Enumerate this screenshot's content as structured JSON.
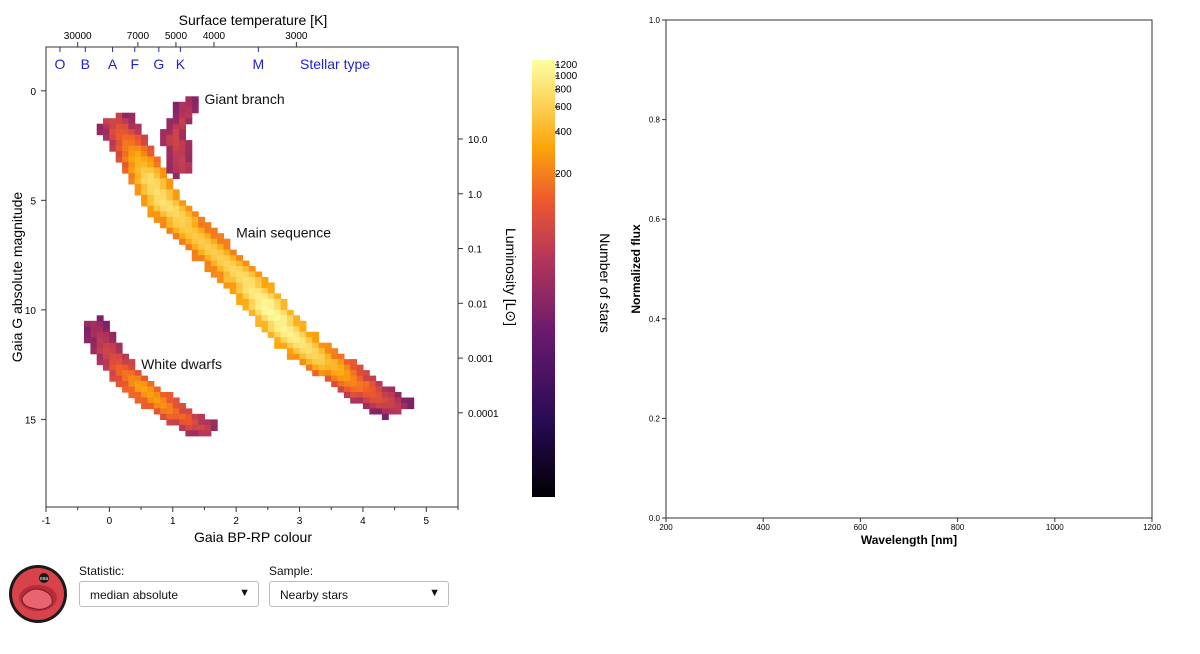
{
  "colors": {
    "stellar_type": "#2222cc",
    "heatmap_low": "#1a0b40",
    "heatmap_mid": "#c73e4c",
    "heatmap_high": "#fcffa4"
  },
  "controls": {
    "statistic_label": "Statistic:",
    "statistic_value": "median absolute",
    "sample_label": "Sample:",
    "sample_value": "Nearby stars",
    "dropdown_icon": "triangle-down-icon"
  },
  "logo": {
    "icon": "esa-mission-badge-icon",
    "text": "esa"
  },
  "chart_data": [
    {
      "type": "heatmap",
      "title": "",
      "xlabel": "Gaia BP-RP colour",
      "ylabel": "Gaia G absolute magnitude",
      "xlim": [
        -1,
        5.5
      ],
      "ylim": [
        19,
        -2
      ],
      "x_ticks": [
        "-1",
        "0",
        "1",
        "2",
        "3",
        "4",
        "5"
      ],
      "y_ticks": [
        "0",
        "5",
        "10",
        "15"
      ],
      "top_axis": {
        "label": "Surface temperature [K]",
        "ticks": [
          {
            "label": "30000",
            "x": -0.5
          },
          {
            "label": "7000",
            "x": 0.45
          },
          {
            "label": "5000",
            "x": 1.05
          },
          {
            "label": "4000",
            "x": 1.65
          },
          {
            "label": "3000",
            "x": 2.95
          }
        ]
      },
      "stellar_types": {
        "label": "Stellar type",
        "types": [
          {
            "label": "O",
            "x": -0.78
          },
          {
            "label": "B",
            "x": -0.38
          },
          {
            "label": "A",
            "x": 0.05
          },
          {
            "label": "F",
            "x": 0.4
          },
          {
            "label": "G",
            "x": 0.78
          },
          {
            "label": "K",
            "x": 1.12
          },
          {
            "label": "M",
            "x": 2.35
          }
        ]
      },
      "luminosity_axis": {
        "label": "Luminosity [L⊙]",
        "ticks": [
          {
            "label": "10.0",
            "mag": 2.2
          },
          {
            "label": "1.0",
            "mag": 4.7
          },
          {
            "label": "0.1",
            "mag": 7.2
          },
          {
            "label": "0.01",
            "mag": 9.7
          },
          {
            "label": "0.001",
            "mag": 12.2
          },
          {
            "label": "0.0001",
            "mag": 14.7
          }
        ]
      },
      "colorbar": {
        "label": "Number of stars",
        "scale": "log",
        "range": [
          1,
          1300
        ],
        "ticks": [
          "1200",
          "1000",
          "800",
          "600",
          "400",
          "200"
        ]
      },
      "regions": [
        {
          "name": "Main sequence",
          "label_at": [
            2.0,
            6.7
          ],
          "points": [
            [
              0.0,
              1.2,
              10
            ],
            [
              0.3,
              2.5,
              80
            ],
            [
              0.55,
              3.8,
              500
            ],
            [
              0.8,
              5.0,
              600
            ],
            [
              1.2,
              6.2,
              300
            ],
            [
              1.7,
              7.5,
              350
            ],
            [
              2.1,
              8.6,
              600
            ],
            [
              2.45,
              9.8,
              1200
            ],
            [
              2.8,
              11.0,
              900
            ],
            [
              3.2,
              12.0,
              400
            ],
            [
              3.6,
              12.7,
              120
            ],
            [
              4.0,
              13.6,
              30
            ],
            [
              4.5,
              14.4,
              5
            ]
          ]
        },
        {
          "name": "Giant branch",
          "label_at": [
            1.5,
            0.6
          ],
          "points": [
            [
              1.1,
              0.4,
              4
            ],
            [
              1.15,
              0.7,
              6
            ],
            [
              0.95,
              1.8,
              10
            ],
            [
              1.05,
              2.8,
              8
            ],
            [
              1.1,
              3.5,
              6
            ]
          ]
        },
        {
          "name": "White dwarfs",
          "label_at": [
            0.5,
            12.7
          ],
          "points": [
            [
              -0.3,
              10.5,
              3
            ],
            [
              -0.1,
              11.7,
              10
            ],
            [
              0.15,
              12.6,
              40
            ],
            [
              0.4,
              13.3,
              120
            ],
            [
              0.7,
              14.0,
              90
            ],
            [
              1.0,
              14.6,
              40
            ],
            [
              1.3,
              15.1,
              15
            ],
            [
              1.5,
              15.4,
              5
            ]
          ]
        }
      ]
    },
    {
      "type": "line",
      "title": "",
      "xlabel": "Wavelength [nm]",
      "ylabel": "Normalized flux",
      "xlim": [
        200,
        1200
      ],
      "ylim": [
        0.0,
        1.0
      ],
      "x_ticks": [
        "200",
        "400",
        "600",
        "800",
        "1000",
        "1200"
      ],
      "y_ticks": [
        "0.0",
        "0.2",
        "0.4",
        "0.6",
        "0.8",
        "1.0"
      ],
      "series": []
    }
  ]
}
